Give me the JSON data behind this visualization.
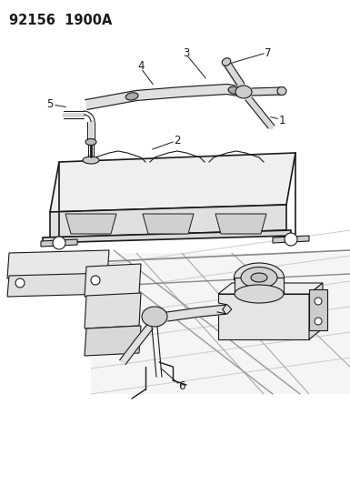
{
  "title": "92156  1900A",
  "bg_color": "#ffffff",
  "line_color": "#1a1a1a",
  "label_color": "#1a1a1a",
  "title_fontsize": 10.5,
  "label_fontsize": 8.5,
  "figsize": [
    3.85,
    5.33
  ],
  "dpi": 100
}
